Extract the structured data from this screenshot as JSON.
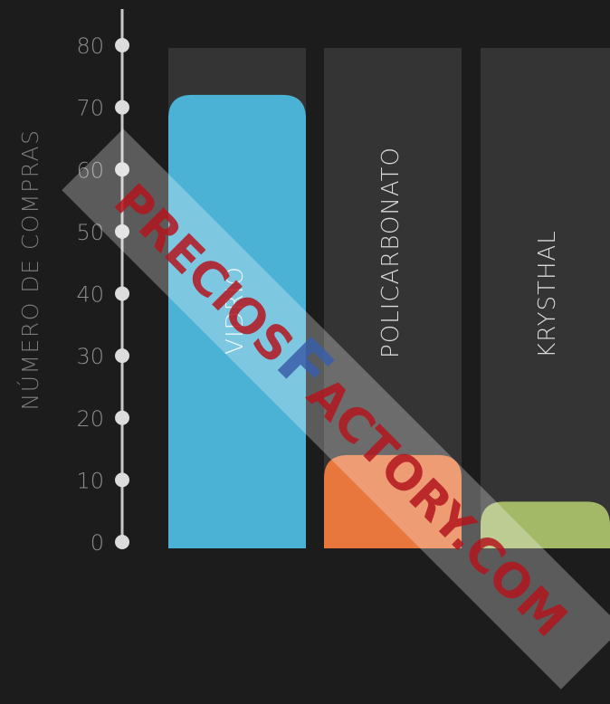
{
  "chart_data": {
    "type": "bar",
    "categories": [
      "VIDRIO",
      "POLICARBONATO",
      "KRYSTHAL"
    ],
    "values": [
      72,
      14,
      6.5
    ],
    "ylabel": "NÚMERO DE COMPRAS",
    "ylim": [
      0,
      80
    ],
    "yticks": [
      0,
      10,
      20,
      30,
      40,
      50,
      60,
      70,
      80
    ],
    "colors": [
      "#4bb2d6",
      "#e8773e",
      "#a3b968"
    ],
    "background": "#1c1c1c",
    "track_color": "#343434",
    "grid": false,
    "legend": "none"
  },
  "watermark": {
    "text_pre": "PRECIOS",
    "text_big": "F",
    "text_post": "ACTORY",
    "text_dom": ".COM",
    "colors": [
      "#b3151d",
      "#3a5ea8"
    ]
  }
}
